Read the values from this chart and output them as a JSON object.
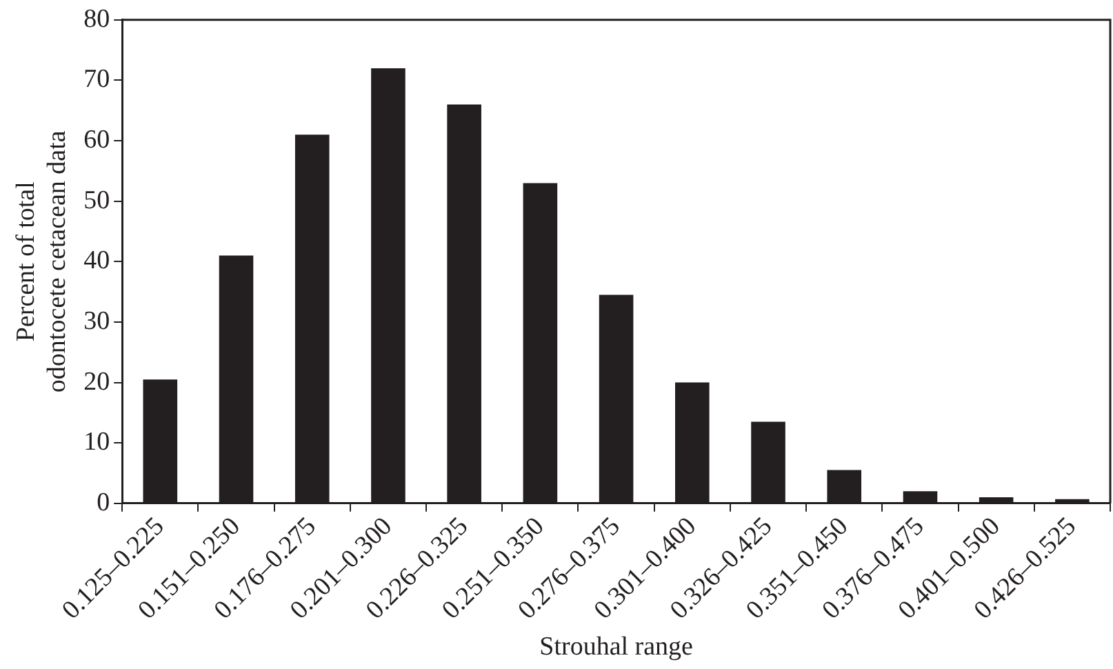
{
  "chart_data": {
    "type": "bar",
    "xlabel": "Strouhal range",
    "ylabel": "Percent of total\nodontocete cetacean data",
    "categories": [
      "0.125–0.225",
      "0.151–0.250",
      "0.176–0.275",
      "0.201–0.300",
      "0.226–0.325",
      "0.251–0.350",
      "0.276–0.375",
      "0.301–0.400",
      "0.326–0.425",
      "0.351–0.450",
      "0.376–0.475",
      "0.401–0.500",
      "0.426–0.525"
    ],
    "values": [
      20.5,
      41,
      61,
      72,
      66,
      53,
      34.5,
      20,
      13.5,
      5.5,
      2,
      1,
      0.7
    ],
    "color": "#231f20",
    "ylim": [
      0,
      80
    ],
    "yticks": [
      0,
      10,
      20,
      30,
      40,
      50,
      60,
      70,
      80
    ],
    "grid": false,
    "legend": false
  }
}
